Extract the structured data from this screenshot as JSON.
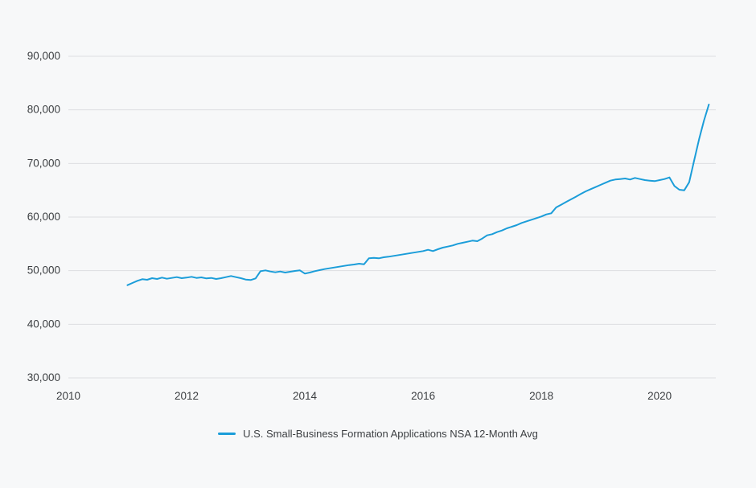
{
  "chart_data": {
    "type": "line",
    "title": "",
    "legend": "U.S. Small-Business Formation Applications NSA 12-Month Avg",
    "line_color": "#1b9dd9",
    "background_color": "#f7f8f9",
    "gridline_color": "#dcdee1",
    "tick_text_color": "#3c3f42",
    "xlim": [
      2010,
      2020.95
    ],
    "ylim": [
      30000,
      90000
    ],
    "grid": true,
    "legend_position": "bottom-center",
    "x_ticks": [
      {
        "value": 2010,
        "label": "2010"
      },
      {
        "value": 2012,
        "label": "2012"
      },
      {
        "value": 2014,
        "label": "2014"
      },
      {
        "value": 2016,
        "label": "2016"
      },
      {
        "value": 2018,
        "label": "2018"
      },
      {
        "value": 2020,
        "label": "2020"
      }
    ],
    "y_ticks": [
      {
        "value": 30000,
        "label": "30,000"
      },
      {
        "value": 40000,
        "label": "40,000"
      },
      {
        "value": 50000,
        "label": "50,000"
      },
      {
        "value": 60000,
        "label": "60,000"
      },
      {
        "value": 70000,
        "label": "70,000"
      },
      {
        "value": 80000,
        "label": "80,000"
      },
      {
        "value": 90000,
        "label": "90,000"
      }
    ],
    "series": [
      {
        "name": "U.S. Small-Business Formation Applications NSA 12-Month Avg",
        "x_start": 2011.0,
        "x_step": 0.0833333,
        "values": [
          47300,
          47700,
          48100,
          48400,
          48300,
          48600,
          48450,
          48700,
          48500,
          48650,
          48800,
          48600,
          48700,
          48850,
          48650,
          48750,
          48550,
          48650,
          48450,
          48600,
          48800,
          49000,
          48800,
          48600,
          48350,
          48250,
          48550,
          49900,
          50050,
          49850,
          49700,
          49850,
          49650,
          49800,
          49950,
          50050,
          49450,
          49650,
          49900,
          50100,
          50300,
          50450,
          50600,
          50750,
          50900,
          51050,
          51150,
          51300,
          51200,
          52300,
          52400,
          52300,
          52500,
          52600,
          52750,
          52900,
          53050,
          53200,
          53350,
          53500,
          53650,
          53900,
          53650,
          54000,
          54300,
          54500,
          54700,
          55000,
          55200,
          55400,
          55600,
          55500,
          56000,
          56600,
          56800,
          57200,
          57500,
          57900,
          58200,
          58500,
          58900,
          59200,
          59500,
          59800,
          60100,
          60500,
          60700,
          61800,
          62300,
          62800,
          63300,
          63800,
          64300,
          64800,
          65200,
          65600,
          66000,
          66400,
          66800,
          67000,
          67100,
          67200,
          67000,
          67300,
          67100,
          66900,
          66800,
          66700,
          66900,
          67100,
          67400,
          65800,
          65100,
          65000,
          66500,
          70500,
          74500,
          78000,
          81000
        ]
      }
    ]
  }
}
